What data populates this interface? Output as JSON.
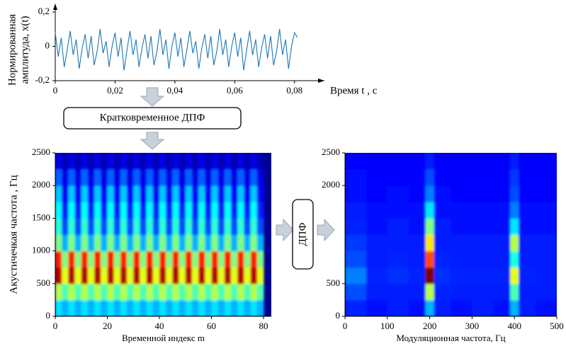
{
  "diagram": {
    "boxes": [
      "Кратковременное ДПФ",
      "ДПФ"
    ]
  },
  "chart_data": [
    {
      "type": "line",
      "xlabel": "Время  t , с",
      "ylabel": [
        "Нормированная",
        "амплитуда, x(t)"
      ],
      "color": "#1f77b4",
      "xlim": [
        0,
        0.09
      ],
      "ylim": [
        -0.2,
        0.2
      ],
      "xticks": [
        0,
        {
          "value": 0.02,
          "label": "0,02"
        },
        {
          "value": 0.04,
          "label": "0,04"
        },
        {
          "value": 0.06,
          "label": "0,06"
        },
        {
          "value": 0.08,
          "label": "0,08"
        }
      ],
      "yticks": [
        {
          "value": -0.2,
          "label": "-0,2"
        },
        0,
        {
          "value": 0.2,
          "label": "0,2"
        }
      ],
      "x": [
        0,
        0.001,
        0.002,
        0.003,
        0.004,
        0.005,
        0.006,
        0.007,
        0.008,
        0.009,
        0.01,
        0.011,
        0.012,
        0.013,
        0.014,
        0.015,
        0.016,
        0.017,
        0.018,
        0.019,
        0.02,
        0.021,
        0.022,
        0.023,
        0.024,
        0.025,
        0.026,
        0.027,
        0.028,
        0.029,
        0.03,
        0.031,
        0.032,
        0.033,
        0.034,
        0.035,
        0.036,
        0.037,
        0.038,
        0.039,
        0.04,
        0.041,
        0.042,
        0.043,
        0.044,
        0.045,
        0.046,
        0.047,
        0.048,
        0.049,
        0.05,
        0.051,
        0.052,
        0.053,
        0.054,
        0.055,
        0.056,
        0.057,
        0.058,
        0.059,
        0.06,
        0.061,
        0.062,
        0.063,
        0.064,
        0.065,
        0.066,
        0.067,
        0.068,
        0.069,
        0.07,
        0.071,
        0.072,
        0.073,
        0.074,
        0.075,
        0.076,
        0.077,
        0.078,
        0.079,
        0.08,
        0.081
      ],
      "values": [
        0.08,
        -0.06,
        0.05,
        -0.12,
        -0.02,
        0.09,
        -0.05,
        0.04,
        -0.13,
        -0.01,
        0.07,
        -0.07,
        0.06,
        -0.11,
        -0.03,
        0.1,
        -0.04,
        0.03,
        -0.12,
        0.0,
        0.08,
        -0.06,
        0.05,
        -0.14,
        -0.02,
        0.09,
        -0.05,
        0.04,
        -0.12,
        -0.01,
        0.07,
        -0.07,
        0.06,
        -0.11,
        -0.03,
        0.1,
        -0.05,
        0.04,
        -0.13,
        0.0,
        0.08,
        -0.06,
        0.05,
        -0.12,
        -0.02,
        0.09,
        -0.04,
        0.03,
        -0.13,
        -0.01,
        0.07,
        -0.07,
        0.06,
        -0.11,
        -0.03,
        0.1,
        -0.05,
        0.04,
        -0.12,
        0.0,
        0.08,
        -0.06,
        0.05,
        -0.14,
        -0.02,
        0.09,
        -0.05,
        0.04,
        -0.12,
        -0.01,
        0.07,
        -0.07,
        0.06,
        -0.11,
        -0.03,
        0.1,
        -0.05,
        0.04,
        -0.13,
        0.0,
        0.08,
        0.05
      ]
    },
    {
      "type": "heatmap",
      "xlabel": "Временной индекс m",
      "ylabel": "Акустичечкая частота , Гц",
      "colormap": "jet",
      "zlim": [
        0,
        1
      ],
      "xlim": [
        0,
        83
      ],
      "ylim": [
        0,
        2500
      ],
      "xticks": [
        0,
        20,
        40,
        60,
        80
      ],
      "yticks": [
        0,
        500,
        1000,
        1500,
        2000,
        2500
      ],
      "xbins": [
        0,
        2.5,
        5,
        7.5,
        10,
        12.5,
        15,
        17.5,
        20,
        22.5,
        25,
        27.5,
        30,
        32.5,
        35,
        37.5,
        40,
        42.5,
        45,
        47.5,
        50,
        52.5,
        55,
        57.5,
        60,
        62.5,
        65,
        67.5,
        70,
        72.5,
        75,
        77.5,
        80
      ],
      "ybins": [
        0,
        250,
        500,
        750,
        1000,
        1250,
        1500,
        1750,
        2000,
        2250,
        2500
      ],
      "z": [
        [
          0.35,
          0.3,
          0.35,
          0.3,
          0.35,
          0.3,
          0.35,
          0.3,
          0.35,
          0.3,
          0.35,
          0.3,
          0.35,
          0.3,
          0.35,
          0.3,
          0.35,
          0.3,
          0.35,
          0.3,
          0.35,
          0.3,
          0.35,
          0.3,
          0.35,
          0.3,
          0.35,
          0.3,
          0.35,
          0.3,
          0.35,
          0.3
        ],
        [
          0.55,
          0.45,
          0.55,
          0.45,
          0.55,
          0.45,
          0.55,
          0.45,
          0.55,
          0.45,
          0.55,
          0.45,
          0.55,
          0.45,
          0.55,
          0.45,
          0.55,
          0.45,
          0.55,
          0.45,
          0.55,
          0.45,
          0.55,
          0.45,
          0.55,
          0.45,
          0.55,
          0.45,
          0.55,
          0.45,
          0.55,
          0.45
        ],
        [
          0.95,
          0.6,
          0.95,
          0.6,
          0.95,
          0.6,
          0.95,
          0.6,
          0.95,
          0.6,
          0.95,
          0.6,
          0.95,
          0.6,
          0.95,
          0.6,
          0.95,
          0.6,
          0.95,
          0.6,
          0.95,
          0.6,
          0.95,
          0.6,
          0.95,
          0.6,
          0.95,
          0.6,
          0.95,
          0.6,
          0.95,
          0.6
        ],
        [
          0.85,
          0.5,
          0.85,
          0.5,
          0.85,
          0.5,
          0.85,
          0.5,
          0.85,
          0.5,
          0.85,
          0.5,
          0.85,
          0.5,
          0.85,
          0.5,
          0.85,
          0.5,
          0.85,
          0.5,
          0.85,
          0.5,
          0.85,
          0.5,
          0.85,
          0.5,
          0.85,
          0.5,
          0.85,
          0.5,
          0.85,
          0.5
        ],
        [
          0.5,
          0.3,
          0.5,
          0.3,
          0.5,
          0.3,
          0.5,
          0.3,
          0.5,
          0.3,
          0.5,
          0.3,
          0.5,
          0.3,
          0.5,
          0.3,
          0.5,
          0.3,
          0.5,
          0.3,
          0.5,
          0.3,
          0.5,
          0.3,
          0.5,
          0.3,
          0.5,
          0.3,
          0.5,
          0.3,
          0.5,
          0.3
        ],
        [
          0.42,
          0.2,
          0.42,
          0.2,
          0.42,
          0.2,
          0.42,
          0.2,
          0.42,
          0.2,
          0.42,
          0.2,
          0.42,
          0.2,
          0.42,
          0.2,
          0.42,
          0.2,
          0.42,
          0.2,
          0.42,
          0.2,
          0.42,
          0.2,
          0.42,
          0.2,
          0.42,
          0.2,
          0.42,
          0.2,
          0.42,
          0.2
        ],
        [
          0.38,
          0.15,
          0.38,
          0.15,
          0.38,
          0.15,
          0.38,
          0.15,
          0.38,
          0.15,
          0.38,
          0.15,
          0.38,
          0.15,
          0.38,
          0.15,
          0.38,
          0.15,
          0.38,
          0.15,
          0.38,
          0.15,
          0.38,
          0.15,
          0.38,
          0.15,
          0.38,
          0.15,
          0.38,
          0.15,
          0.38,
          0.15
        ],
        [
          0.32,
          0.12,
          0.32,
          0.12,
          0.32,
          0.12,
          0.32,
          0.12,
          0.32,
          0.12,
          0.32,
          0.12,
          0.32,
          0.12,
          0.32,
          0.12,
          0.32,
          0.12,
          0.32,
          0.12,
          0.32,
          0.12,
          0.32,
          0.12,
          0.32,
          0.12,
          0.32,
          0.12,
          0.32,
          0.12,
          0.32,
          0.12
        ],
        [
          0.22,
          0.1,
          0.22,
          0.1,
          0.22,
          0.1,
          0.22,
          0.1,
          0.22,
          0.1,
          0.22,
          0.1,
          0.22,
          0.1,
          0.22,
          0.1,
          0.22,
          0.1,
          0.22,
          0.1,
          0.22,
          0.1,
          0.22,
          0.1,
          0.22,
          0.1,
          0.22,
          0.1,
          0.22,
          0.1,
          0.22,
          0.1
        ],
        [
          0.1,
          0.05,
          0.1,
          0.05,
          0.1,
          0.05,
          0.1,
          0.05,
          0.1,
          0.05,
          0.1,
          0.05,
          0.1,
          0.05,
          0.1,
          0.05,
          0.1,
          0.05,
          0.1,
          0.05,
          0.1,
          0.05,
          0.1,
          0.05,
          0.1,
          0.05,
          0.1,
          0.05,
          0.1,
          0.05,
          0.1,
          0.05
        ]
      ]
    },
    {
      "type": "heatmap",
      "xlabel": "Модуляционная частота, Гц",
      "colormap": "jet",
      "zlim": [
        0,
        1
      ],
      "xlim": [
        0,
        500
      ],
      "ylim": [
        0,
        2500
      ],
      "xticks": [
        0,
        100,
        200,
        300,
        400,
        500
      ],
      "yticks": [
        0,
        500,
        2000,
        2500
      ],
      "xbins": [
        0,
        50,
        100,
        150,
        190,
        210,
        250,
        300,
        350,
        390,
        410,
        450,
        500
      ],
      "ybins": [
        0,
        250,
        500,
        750,
        1000,
        1250,
        1500,
        1750,
        2000,
        2250,
        2500
      ],
      "z": [
        [
          0.16,
          0.14,
          0.15,
          0.14,
          0.3,
          0.15,
          0.14,
          0.15,
          0.14,
          0.3,
          0.15,
          0.14
        ],
        [
          0.2,
          0.15,
          0.15,
          0.15,
          0.55,
          0.16,
          0.15,
          0.15,
          0.15,
          0.45,
          0.15,
          0.15
        ],
        [
          0.25,
          0.16,
          0.17,
          0.16,
          1.0,
          0.17,
          0.16,
          0.16,
          0.16,
          0.6,
          0.16,
          0.15
        ],
        [
          0.2,
          0.15,
          0.16,
          0.15,
          0.8,
          0.16,
          0.15,
          0.15,
          0.15,
          0.4,
          0.15,
          0.15
        ],
        [
          0.18,
          0.15,
          0.15,
          0.15,
          0.65,
          0.15,
          0.15,
          0.15,
          0.15,
          0.55,
          0.15,
          0.15
        ],
        [
          0.16,
          0.14,
          0.15,
          0.14,
          0.5,
          0.15,
          0.14,
          0.14,
          0.14,
          0.35,
          0.14,
          0.14
        ],
        [
          0.15,
          0.14,
          0.14,
          0.14,
          0.35,
          0.14,
          0.14,
          0.14,
          0.14,
          0.25,
          0.14,
          0.14
        ],
        [
          0.14,
          0.13,
          0.14,
          0.13,
          0.25,
          0.14,
          0.13,
          0.13,
          0.13,
          0.2,
          0.13,
          0.13
        ],
        [
          0.14,
          0.13,
          0.13,
          0.13,
          0.2,
          0.13,
          0.13,
          0.13,
          0.13,
          0.18,
          0.13,
          0.13
        ],
        [
          0.13,
          0.12,
          0.12,
          0.12,
          0.15,
          0.12,
          0.12,
          0.12,
          0.12,
          0.15,
          0.12,
          0.12
        ]
      ]
    }
  ]
}
